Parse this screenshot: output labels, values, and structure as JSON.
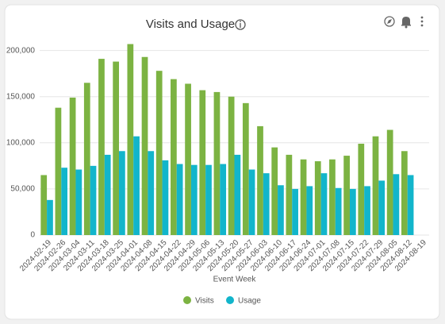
{
  "chart_data": {
    "type": "bar",
    "title": "Visits and Usage",
    "x_label": "Event Week",
    "categories": [
      "2024-02-19",
      "2024-02-26",
      "2024-03-04",
      "2024-03-11",
      "2024-03-18",
      "2024-03-25",
      "2024-04-01",
      "2024-04-08",
      "2024-04-15",
      "2024-04-22",
      "2024-04-29",
      "2024-05-06",
      "2024-05-13",
      "2024-05-20",
      "2024-05-27",
      "2024-06-03",
      "2024-06-10",
      "2024-06-17",
      "2024-06-24",
      "2024-07-01",
      "2024-07-08",
      "2024-07-15",
      "2024-07-22",
      "2024-07-29",
      "2024-08-05",
      "2024-08-12",
      "2024-08-19"
    ],
    "series": [
      {
        "name": "Visits",
        "color": "#7cb342",
        "values": [
          65000,
          138000,
          149000,
          165000,
          191000,
          188000,
          207000,
          193000,
          178000,
          169000,
          164000,
          157000,
          155000,
          150000,
          143000,
          118000,
          95000,
          87000,
          82000,
          80000,
          82000,
          86000,
          99000,
          107000,
          114000,
          91000,
          null
        ]
      },
      {
        "name": "Usage",
        "color": "#12b5cb",
        "values": [
          38000,
          73000,
          71000,
          75000,
          87000,
          91000,
          107000,
          91000,
          81000,
          77000,
          76000,
          76000,
          77000,
          87000,
          71000,
          67000,
          54000,
          50000,
          53000,
          67000,
          51000,
          50000,
          53000,
          59000,
          66000,
          65000,
          null
        ]
      }
    ],
    "ylim": [
      0,
      210000
    ],
    "yticks": [
      0,
      {
        "value": 50000,
        "label": "50,000"
      },
      {
        "value": 100000,
        "label": "100,000"
      },
      {
        "value": 150000,
        "label": "150,000"
      },
      {
        "value": 200000,
        "label": "200,000"
      }
    ],
    "grid": true,
    "legend": "bottom"
  }
}
